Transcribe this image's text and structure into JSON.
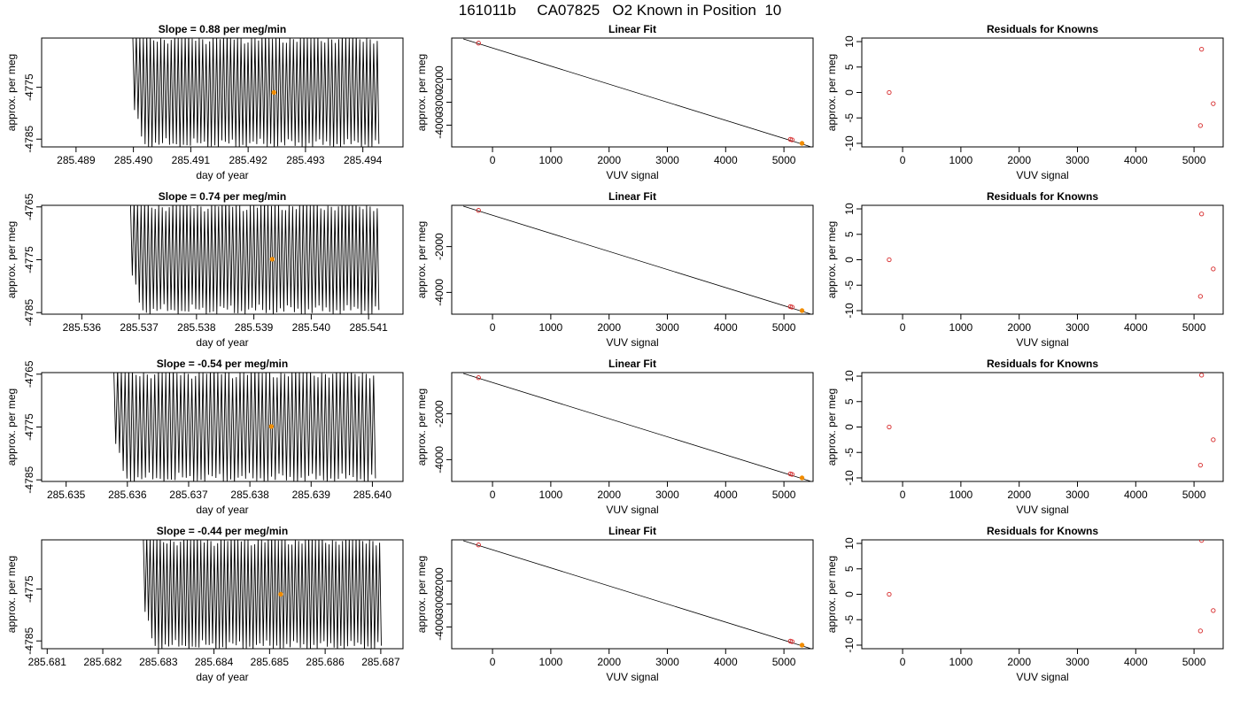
{
  "figure_title": "161011b     CA07825   O2 Known in Position  10",
  "colors": {
    "trace": "#000000",
    "fit_point": "#d62728",
    "highlight": "#f08c00",
    "axis": "#000000"
  },
  "chart_data": [
    {
      "row": 0,
      "panels": [
        {
          "type": "line",
          "title": "Slope =  0.88  per meg/min",
          "xlabel": "day of year",
          "ylabel": "approx. per meg",
          "xticks": [
            "285.489",
            "285.490",
            "285.491",
            "285.492",
            "285.493",
            "285.494"
          ],
          "xlim": [
            285.4884,
            285.4947
          ],
          "yticks": [
            "-4785",
            "-4775"
          ],
          "ylim": [
            -4786.5,
            -4765.5
          ],
          "trace": {
            "x_start": 285.48999,
            "x_end": 285.49425,
            "y_high": -4765.5,
            "y_low": -4786.0,
            "cycles": 70
          },
          "highlight_point": {
            "x": 285.49245,
            "y": -4776.0
          }
        },
        {
          "type": "scatter",
          "title": "Linear Fit",
          "xlabel": "VUV signal",
          "ylabel": "approx. per meg",
          "xticks": [
            "0",
            "1000",
            "2000",
            "3000",
            "4000",
            "5000"
          ],
          "xlim": [
            -700,
            5500
          ],
          "yticks": [
            "-2000",
            "-3000",
            "-4000"
          ],
          "ylim": [
            -4950,
            -200
          ],
          "fit_line": {
            "x": [
              -500,
              5450
            ],
            "y": [
              -240,
              -4935
            ]
          },
          "points": [
            {
              "x": -240,
              "y": -420
            },
            {
              "x": 5110,
              "y": -4620
            },
            {
              "x": 5140,
              "y": -4640
            }
          ],
          "highlight_point": {
            "x": 5310,
            "y": -4795
          }
        },
        {
          "type": "scatter",
          "title": "Residuals for Knowns",
          "xlabel": "VUV signal",
          "ylabel": "approx. per meg",
          "xticks": [
            "0",
            "1000",
            "2000",
            "3000",
            "4000",
            "5000"
          ],
          "xlim": [
            -700,
            5500
          ],
          "yticks": [
            "-10",
            "-5",
            "0",
            "5",
            "10"
          ],
          "yvals": [
            -10,
            -5,
            0,
            5,
            10
          ],
          "ylim": [
            -10.7,
            10.7
          ],
          "points": [
            {
              "x": -230,
              "y": 0
            },
            {
              "x": 5130,
              "y": 8.5
            },
            {
              "x": 5110,
              "y": -6.5
            },
            {
              "x": 5330,
              "y": -2.2
            }
          ]
        }
      ]
    },
    {
      "row": 1,
      "panels": [
        {
          "type": "line",
          "title": "Slope =  0.74  per meg/min",
          "xlabel": "day of year",
          "ylabel": "approx. per meg",
          "xticks": [
            "285.536",
            "285.537",
            "285.538",
            "285.539",
            "285.540",
            "285.541"
          ],
          "xlim": [
            285.5353,
            285.5416
          ],
          "yticks": [
            "-4785",
            "-4775",
            "-4765"
          ],
          "ylim": [
            -4785.3,
            -4764.7
          ],
          "trace": {
            "x_start": 285.53685,
            "x_end": 285.54115,
            "y_high": -4764.7,
            "y_low": -4784.6,
            "cycles": 70
          },
          "highlight_point": {
            "x": 285.53932,
            "y": -4774.9
          }
        },
        {
          "type": "scatter",
          "title": "Linear Fit",
          "xlabel": "VUV signal",
          "ylabel": "approx. per meg",
          "xticks": [
            "0",
            "1000",
            "2000",
            "3000",
            "4000",
            "5000"
          ],
          "xlim": [
            -700,
            5500
          ],
          "yticks": [
            "-2000",
            "-4000"
          ],
          "ylim": [
            -4950,
            -200
          ],
          "fit_line": {
            "x": [
              -500,
              5450
            ],
            "y": [
              -240,
              -4935
            ]
          },
          "points": [
            {
              "x": -240,
              "y": -420
            },
            {
              "x": 5110,
              "y": -4620
            },
            {
              "x": 5140,
              "y": -4640
            }
          ],
          "highlight_point": {
            "x": 5310,
            "y": -4795
          }
        },
        {
          "type": "scatter",
          "title": "Residuals for Knowns",
          "xlabel": "VUV signal",
          "ylabel": "approx. per meg",
          "xticks": [
            "0",
            "1000",
            "2000",
            "3000",
            "4000",
            "5000"
          ],
          "xlim": [
            -700,
            5500
          ],
          "yticks": [
            "-10",
            "-5",
            "0",
            "5",
            "10"
          ],
          "yvals": [
            -10,
            -5,
            0,
            5,
            10
          ],
          "ylim": [
            -10.7,
            10.7
          ],
          "points": [
            {
              "x": -230,
              "y": 0
            },
            {
              "x": 5130,
              "y": 9.0
            },
            {
              "x": 5110,
              "y": -7.2
            },
            {
              "x": 5330,
              "y": -1.8
            }
          ]
        }
      ]
    },
    {
      "row": 2,
      "panels": [
        {
          "type": "line",
          "title": "Slope =  -0.54  per meg/min",
          "xlabel": "day of year",
          "ylabel": "approx. per meg",
          "xticks": [
            "285.635",
            "285.636",
            "285.637",
            "285.638",
            "285.639",
            "285.640"
          ],
          "xlim": [
            285.6346,
            285.6405
          ],
          "yticks": [
            "-4785",
            "-4775",
            "-4765"
          ],
          "ylim": [
            -4785.3,
            -4764.7
          ],
          "trace": {
            "x_start": 285.63578,
            "x_end": 285.64002,
            "y_high": -4764.7,
            "y_low": -4784.8,
            "cycles": 70
          },
          "highlight_point": {
            "x": 285.63835,
            "y": -4774.9
          }
        },
        {
          "type": "scatter",
          "title": "Linear Fit",
          "xlabel": "VUV signal",
          "ylabel": "approx. per meg",
          "xticks": [
            "0",
            "1000",
            "2000",
            "3000",
            "4000",
            "5000"
          ],
          "xlim": [
            -700,
            5500
          ],
          "yticks": [
            "-2000",
            "-4000"
          ],
          "ylim": [
            -4950,
            -200
          ],
          "fit_line": {
            "x": [
              -500,
              5450
            ],
            "y": [
              -240,
              -4935
            ]
          },
          "points": [
            {
              "x": -240,
              "y": -420
            },
            {
              "x": 5110,
              "y": -4620
            },
            {
              "x": 5140,
              "y": -4640
            }
          ],
          "highlight_point": {
            "x": 5310,
            "y": -4795
          }
        },
        {
          "type": "scatter",
          "title": "Residuals for Knowns",
          "xlabel": "VUV signal",
          "ylabel": "approx. per meg",
          "xticks": [
            "0",
            "1000",
            "2000",
            "3000",
            "4000",
            "5000"
          ],
          "xlim": [
            -700,
            5500
          ],
          "yticks": [
            "-10",
            "-5",
            "0",
            "5",
            "10"
          ],
          "yvals": [
            -10,
            -5,
            0,
            5,
            10
          ],
          "ylim": [
            -10.7,
            10.7
          ],
          "points": [
            {
              "x": -230,
              "y": 0
            },
            {
              "x": 5130,
              "y": 10.2
            },
            {
              "x": 5110,
              "y": -7.5
            },
            {
              "x": 5330,
              "y": -2.5
            }
          ]
        }
      ]
    },
    {
      "row": 3,
      "panels": [
        {
          "type": "line",
          "title": "Slope =  -0.44  per meg/min",
          "xlabel": "day of year",
          "ylabel": "approx. per meg",
          "xticks": [
            "285.681",
            "285.682",
            "285.683",
            "285.684",
            "285.685",
            "285.686",
            "285.687"
          ],
          "xlim": [
            285.6809,
            285.6874
          ],
          "yticks": [
            "-4785",
            "-4775"
          ],
          "ylim": [
            -4786.5,
            -4765.5
          ],
          "trace": {
            "x_start": 285.68273,
            "x_end": 285.68698,
            "y_high": -4765.5,
            "y_low": -4786.0,
            "cycles": 70
          },
          "highlight_point": {
            "x": 285.6852,
            "y": -4776.0
          }
        },
        {
          "type": "scatter",
          "title": "Linear Fit",
          "xlabel": "VUV signal",
          "ylabel": "approx. per meg",
          "xticks": [
            "0",
            "1000",
            "2000",
            "3000",
            "4000",
            "5000"
          ],
          "xlim": [
            -700,
            5500
          ],
          "yticks": [
            "-2000",
            "-3000",
            "-4000"
          ],
          "ylim": [
            -4950,
            -200
          ],
          "fit_line": {
            "x": [
              -500,
              5450
            ],
            "y": [
              -240,
              -4935
            ]
          },
          "points": [
            {
              "x": -240,
              "y": -420
            },
            {
              "x": 5110,
              "y": -4620
            },
            {
              "x": 5140,
              "y": -4640
            }
          ],
          "highlight_point": {
            "x": 5310,
            "y": -4795
          }
        },
        {
          "type": "scatter",
          "title": "Residuals for Knowns",
          "xlabel": "VUV signal",
          "ylabel": "approx. per meg",
          "xticks": [
            "0",
            "1000",
            "2000",
            "3000",
            "4000",
            "5000"
          ],
          "xlim": [
            -700,
            5500
          ],
          "yticks": [
            "-10",
            "-5",
            "0",
            "5",
            "10"
          ],
          "yvals": [
            -10,
            -5,
            0,
            5,
            10
          ],
          "ylim": [
            -10.7,
            10.7
          ],
          "points": [
            {
              "x": -230,
              "y": 0
            },
            {
              "x": 5130,
              "y": 10.6
            },
            {
              "x": 5110,
              "y": -7.2
            },
            {
              "x": 5330,
              "y": -3.2
            }
          ]
        }
      ]
    }
  ]
}
